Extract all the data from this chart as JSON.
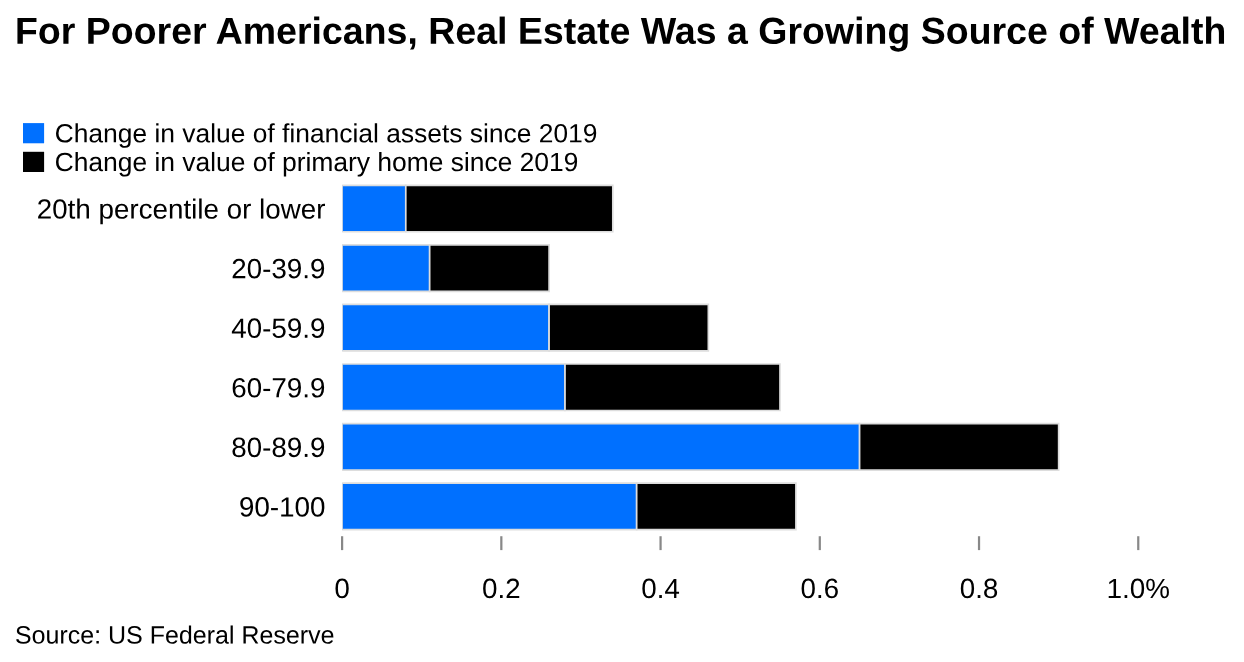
{
  "chart_data": {
    "type": "bar",
    "orientation": "horizontal",
    "stacked": true,
    "title": "For Poorer Americans, Real Estate Was a Growing Source of Wealth",
    "categories": [
      "20th percentile or lower",
      "20-39.9",
      "40-59.9",
      "60-79.9",
      "80-89.9",
      "90-100"
    ],
    "series": [
      {
        "name": "Change in value of financial assets since 2019",
        "color": "#0070ff",
        "values": [
          0.08,
          0.11,
          0.26,
          0.28,
          0.65,
          0.37
        ]
      },
      {
        "name": "Change in value of primary home since 2019",
        "color": "#000000",
        "values": [
          0.26,
          0.15,
          0.2,
          0.27,
          0.25,
          0.2
        ]
      }
    ],
    "xlim": [
      0,
      1.0
    ],
    "xticks": [
      0,
      0.2,
      0.4,
      0.6,
      0.8,
      {
        "value": 1.0,
        "label": "1.0%"
      }
    ],
    "grid": false,
    "legend": "top left",
    "annotations": [
      "Source: US Federal Reserve"
    ]
  }
}
